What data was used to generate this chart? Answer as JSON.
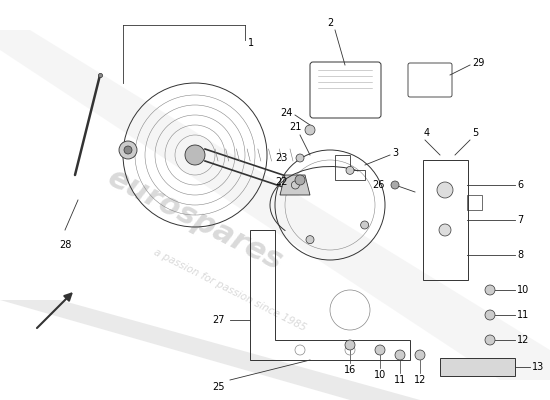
{
  "bg_color": "#ffffff",
  "line_color": "#333333",
  "gray": "#999999",
  "light_gray": "#cccccc",
  "band_color": "#e0e0e0"
}
